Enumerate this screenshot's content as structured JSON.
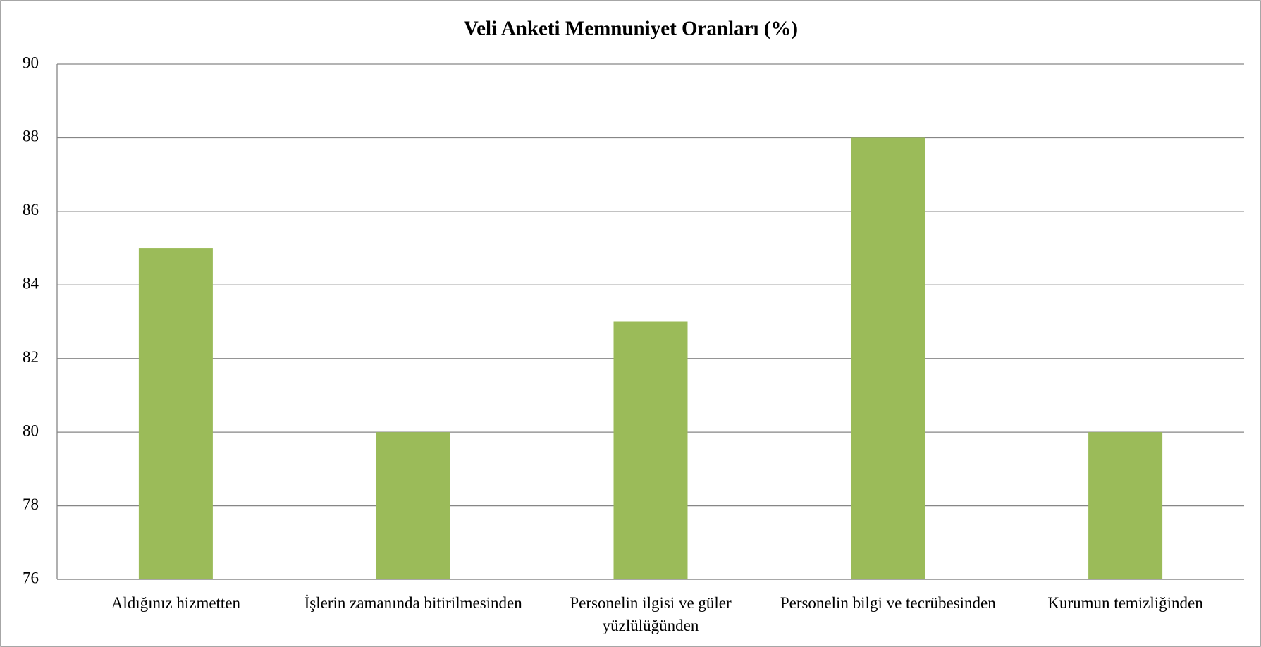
{
  "chart_data": {
    "type": "bar",
    "title": "Veli Anketi Memnuniyet Oranları (%)",
    "categories": [
      "Aldığınız hizmetten",
      "İşlerin zamanında bitirilmesinden",
      "Personelin ilgisi ve güler yüzlülüğünden",
      "Personelin bilgi ve tecrübesinden",
      "Kurumun temizliğinden"
    ],
    "values": [
      85,
      80,
      83,
      88,
      80
    ],
    "color": "#9bbb59",
    "ylim": [
      76,
      90
    ],
    "yticks": [
      76,
      78,
      80,
      82,
      84,
      86,
      88,
      90
    ],
    "grid": true
  }
}
